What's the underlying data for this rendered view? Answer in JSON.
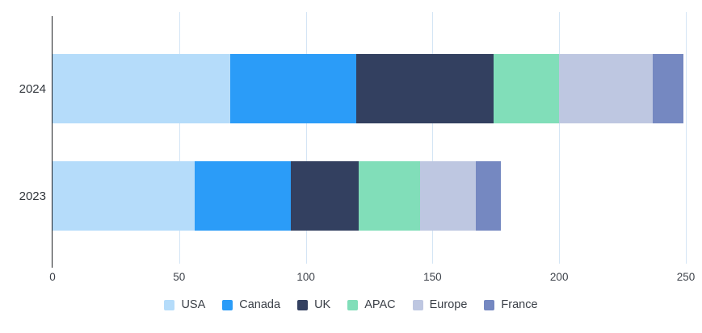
{
  "chart_data": {
    "type": "bar",
    "orientation": "horizontal",
    "stacked": true,
    "title": "",
    "xlabel": "",
    "ylabel": "",
    "categories": [
      "2024",
      "2023"
    ],
    "series": [
      {
        "name": "USA",
        "color": "#B5DCFA",
        "values": [
          70,
          56
        ]
      },
      {
        "name": "Canada",
        "color": "#2B9CF8",
        "values": [
          50,
          38
        ]
      },
      {
        "name": "UK",
        "color": "#334060",
        "values": [
          54,
          27
        ]
      },
      {
        "name": "APAC",
        "color": "#81DEB9",
        "values": [
          26,
          24
        ]
      },
      {
        "name": "Europe",
        "color": "#BEC7E1",
        "values": [
          37,
          22
        ]
      },
      {
        "name": "France",
        "color": "#7588C1",
        "values": [
          12,
          10
        ]
      }
    ],
    "totals": {
      "2024": 249,
      "2023": 177
    },
    "x_axis": {
      "min": 0,
      "max": 250,
      "tick_interval": 50,
      "ticks": [
        0,
        50,
        100,
        150,
        200,
        250
      ]
    },
    "legend_position": "bottom",
    "grid": true,
    "colors": {
      "gridline": "#d4e5f5",
      "axis_line": "#1c1e22",
      "tick_text": "#3d424a",
      "category_text": "#31363c",
      "legend_text": "#3a3f47",
      "background": "#ffffff"
    }
  }
}
